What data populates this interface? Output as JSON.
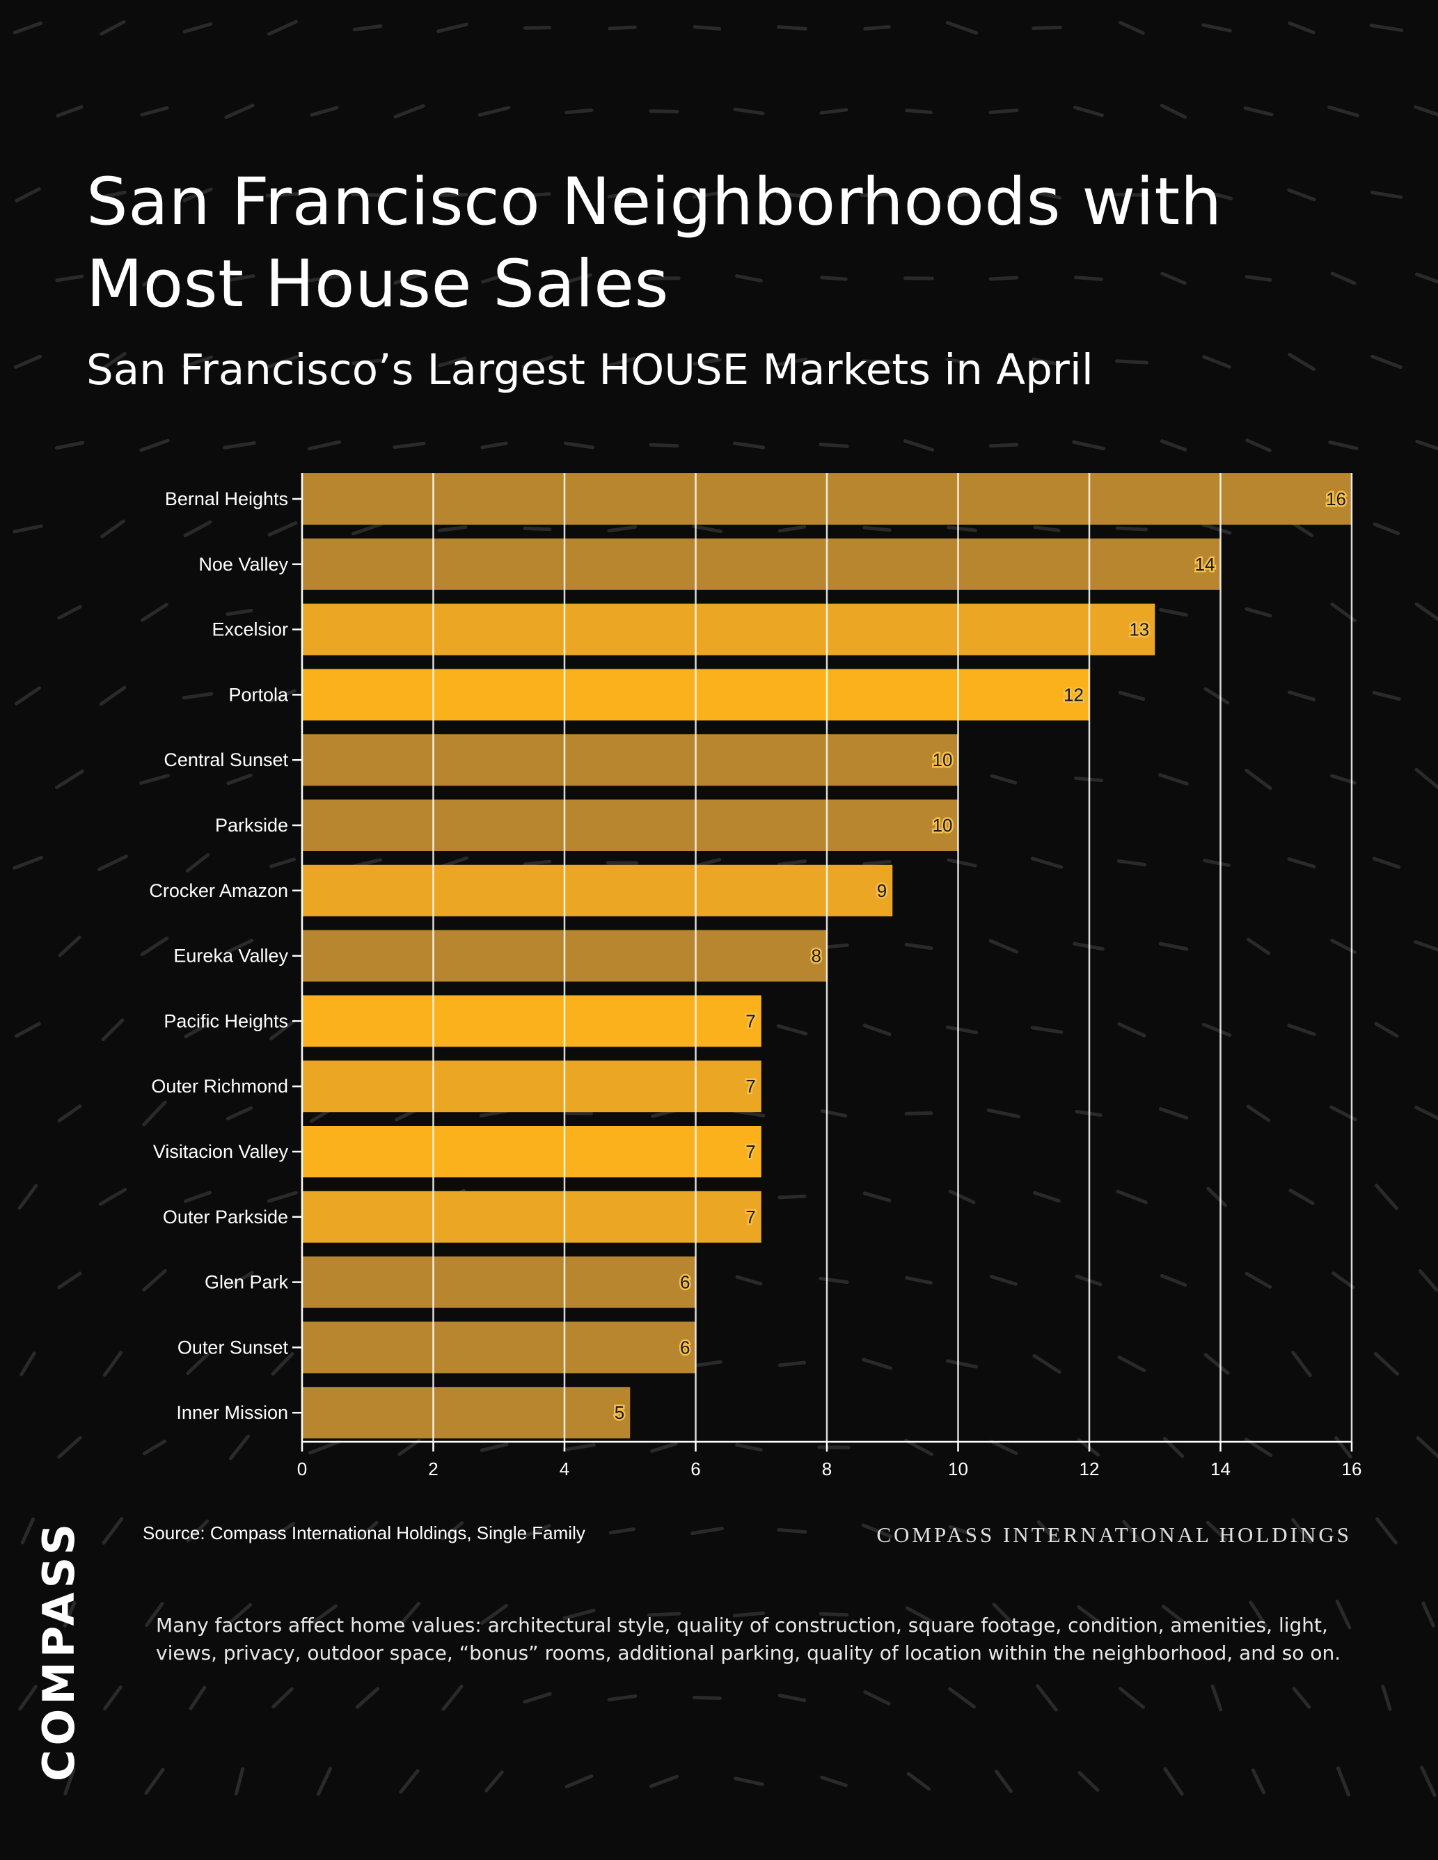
{
  "title": "San Francisco Neighborhoods with Most House Sales",
  "subtitle": "San Francisco’s Largest HOUSE Markets in April",
  "source": "Source: Compass International Holdings, Single Family",
  "brand_right": "COMPASS INTERNATIONAL HOLDINGS",
  "logo_text": "COMPASS",
  "disclaimer": "Many factors affect home values: architectural style, quality of construction, square footage, condition, amenities, light, views, privacy, outdoor space, “bonus” rooms, additional parking, quality of location within the neighborhood, and so on.",
  "colors": {
    "background": "#0b0b0b",
    "bar_bright": "#fbb11c",
    "bar_mid": "#eba624",
    "bar_muted": "#b8862f",
    "grid": "#ffffff",
    "text": "#ffffff"
  },
  "chart_data": {
    "type": "bar",
    "orientation": "horizontal",
    "categories": [
      "Bernal Heights",
      "Noe Valley",
      "Excelsior",
      "Portola",
      "Central Sunset",
      "Parkside",
      "Crocker Amazon",
      "Eureka Valley",
      "Pacific Heights",
      "Outer Richmond",
      "Visitacion Valley",
      "Outer Parkside",
      "Glen Park",
      "Outer Sunset",
      "Inner Mission"
    ],
    "values": [
      16,
      14,
      13,
      12,
      10,
      10,
      9,
      8,
      7,
      7,
      7,
      7,
      6,
      6,
      5
    ],
    "bar_tones": [
      "muted",
      "muted",
      "mid",
      "bright",
      "muted",
      "muted",
      "mid",
      "muted",
      "bright",
      "mid",
      "bright",
      "mid",
      "muted",
      "muted",
      "muted"
    ],
    "xlim": [
      0,
      16
    ],
    "xticks": [
      0,
      2,
      4,
      6,
      8,
      10,
      12,
      14,
      16
    ],
    "grid": true,
    "data_labels": true
  }
}
